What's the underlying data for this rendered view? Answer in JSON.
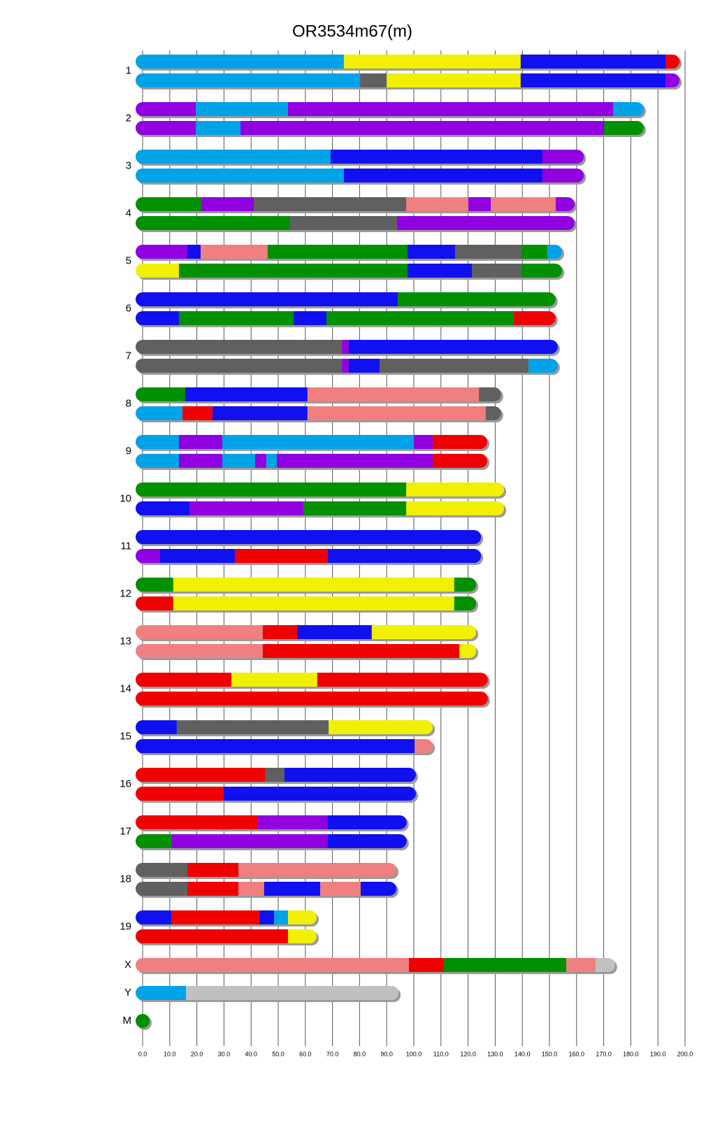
{
  "chart_data": {
    "type": "chromosome-painting",
    "title": "OR3534m67(m)",
    "xlim": [
      0,
      200
    ],
    "xticks": [
      {
        "value": 0,
        "label": "0.0"
      },
      {
        "value": 10,
        "label": "10.0"
      },
      {
        "value": 20,
        "label": "20.0"
      },
      {
        "value": 30,
        "label": "30.0"
      },
      {
        "value": 40,
        "label": "40.0"
      },
      {
        "value": 50,
        "label": "50.0"
      },
      {
        "value": 60,
        "label": "60.0"
      },
      {
        "value": 70,
        "label": "70.0"
      },
      {
        "value": 80,
        "label": "80.0"
      },
      {
        "value": 90,
        "label": "90.0"
      },
      {
        "value": 100,
        "label": "100.0"
      },
      {
        "value": 110,
        "label": "110.0"
      },
      {
        "value": 120,
        "label": "120.0"
      },
      {
        "value": 130,
        "label": "130.0"
      },
      {
        "value": 140,
        "label": "140.0"
      },
      {
        "value": 150,
        "label": "150.0"
      },
      {
        "value": 160,
        "label": "160.0"
      },
      {
        "value": 170,
        "label": "170.0"
      },
      {
        "value": 180,
        "label": "180.0"
      },
      {
        "value": 190,
        "label": "190.0"
      },
      {
        "value": 200,
        "label": "200.0"
      }
    ],
    "grid": true,
    "chromosomes": [
      {
        "name": "1",
        "haplotypes": [
          [
            [
              74.2,
              "#00a2e8"
            ],
            [
              65.2,
              "#f0f000"
            ],
            [
              53.4,
              "#1010f0"
            ],
            [
              2.6,
              "#f00000"
            ]
          ],
          [
            [
              80.2,
              "#00a2e8"
            ],
            [
              9.8,
              "#606060"
            ],
            [
              49.4,
              "#f0f000"
            ],
            [
              53.4,
              "#1010f0"
            ],
            [
              2.6,
              "#9000e0"
            ]
          ]
        ]
      },
      {
        "name": "2",
        "haplotypes": [
          [
            [
              19.6,
              "#9000e0"
            ],
            [
              34,
              "#00a2e8"
            ],
            [
              119.9,
              "#9000e0"
            ],
            [
              8.7,
              "#00a2e8"
            ]
          ],
          [
            [
              19.6,
              "#9000e0"
            ],
            [
              16.5,
              "#00a2e8"
            ],
            [
              134,
              "#9000e0"
            ],
            [
              12.1,
              "#009000"
            ]
          ]
        ]
      },
      {
        "name": "3",
        "haplotypes": [
          [
            [
              69.3,
              "#00a2e8"
            ],
            [
              78.1,
              "#1010f0"
            ],
            [
              12.7,
              "#9000e0"
            ]
          ],
          [
            [
              74.2,
              "#00a2e8"
            ],
            [
              73.2,
              "#1010f0"
            ],
            [
              12.7,
              "#9000e0"
            ]
          ]
        ]
      },
      {
        "name": "4",
        "haplotypes": [
          [
            [
              21.6,
              "#009000"
            ],
            [
              19.4,
              "#9000e0"
            ],
            [
              56.2,
              "#606060"
            ],
            [
              22.9,
              "#f08080"
            ],
            [
              8.3,
              "#9000e0"
            ],
            [
              23.9,
              "#f08080"
            ],
            [
              4.4,
              "#9000e0"
            ]
          ],
          [
            [
              54.4,
              "#009000"
            ],
            [
              39.4,
              "#606060"
            ],
            [
              62.9,
              "#9000e0"
            ]
          ]
        ]
      },
      {
        "name": "5",
        "haplotypes": [
          [
            [
              16.5,
              "#9000e0"
            ],
            [
              4.9,
              "#1010f0"
            ],
            [
              24.7,
              "#f08080"
            ],
            [
              51.6,
              "#009000"
            ],
            [
              17.5,
              "#1010f0"
            ],
            [
              24.5,
              "#606060"
            ],
            [
              9.5,
              "#009000"
            ],
            [
              2.9,
              "#00a2e8"
            ]
          ],
          [
            [
              13.4,
              "#f0f000"
            ],
            [
              84.3,
              "#009000"
            ],
            [
              23.7,
              "#1010f0"
            ],
            [
              18.3,
              "#606060"
            ],
            [
              12.4,
              "#009000"
            ]
          ]
        ]
      },
      {
        "name": "6",
        "haplotypes": [
          [
            [
              94.1,
              "#1010f0"
            ],
            [
              55.6,
              "#009000"
            ]
          ],
          [
            [
              13.4,
              "#1010f0"
            ],
            [
              42.3,
              "#009000"
            ],
            [
              12.1,
              "#1010f0"
            ],
            [
              69.1,
              "#009000"
            ],
            [
              12.8,
              "#f00000"
            ]
          ]
        ]
      },
      {
        "name": "7",
        "haplotypes": [
          [
            [
              73.5,
              "#606060"
            ],
            [
              2.5,
              "#9000e0"
            ],
            [
              74.5,
              "#1010f0"
            ]
          ],
          [
            [
              73.5,
              "#606060"
            ],
            [
              2.5,
              "#9000e0"
            ],
            [
              11.4,
              "#1010f0"
            ],
            [
              54.9,
              "#606060"
            ],
            [
              8.2,
              "#00a2e8"
            ]
          ]
        ]
      },
      {
        "name": "8",
        "haplotypes": [
          [
            [
              15.7,
              "#009000"
            ],
            [
              45.1,
              "#1010f0"
            ],
            [
              63.2,
              "#f08080"
            ],
            [
              5.6,
              "#606060"
            ]
          ],
          [
            [
              14.7,
              "#00a2e8"
            ],
            [
              11.1,
              "#f00000"
            ],
            [
              35,
              "#1010f0"
            ],
            [
              65.7,
              "#f08080"
            ],
            [
              3.1,
              "#606060"
            ]
          ]
        ]
      },
      {
        "name": "9",
        "haplotypes": [
          [
            [
              13.4,
              "#00a2e8"
            ],
            [
              16,
              "#9000e0"
            ],
            [
              70.6,
              "#00a2e8"
            ],
            [
              7,
              "#9000e0"
            ],
            [
              17.5,
              "#f00000"
            ]
          ],
          [
            [
              13.4,
              "#00a2e8"
            ],
            [
              16,
              "#9000e0"
            ],
            [
              12.1,
              "#00a2e8"
            ],
            [
              4.1,
              "#9000e0"
            ],
            [
              3.9,
              "#00a2e8"
            ],
            [
              57.5,
              "#9000e0"
            ],
            [
              17.5,
              "#f00000"
            ]
          ]
        ]
      },
      {
        "name": "10",
        "haplotypes": [
          [
            [
              97.2,
              "#009000"
            ],
            [
              33.5,
              "#f0f000"
            ]
          ],
          [
            [
              17.3,
              "#1010f0"
            ],
            [
              42,
              "#9000e0"
            ],
            [
              37.9,
              "#009000"
            ],
            [
              33.5,
              "#f0f000"
            ]
          ]
        ]
      },
      {
        "name": "11",
        "haplotypes": [
          [
            [
              122.2,
              "#1010f0"
            ]
          ],
          [
            [
              6.4,
              "#9000e0"
            ],
            [
              27.6,
              "#1010f0"
            ],
            [
              34.3,
              "#f00000"
            ],
            [
              53.9,
              "#1010f0"
            ]
          ]
        ]
      },
      {
        "name": "12",
        "haplotypes": [
          [
            [
              11.3,
              "#009000"
            ],
            [
              103.6,
              "#f0f000"
            ],
            [
              5.5,
              "#009000"
            ]
          ],
          [
            [
              11.3,
              "#f00000"
            ],
            [
              103.6,
              "#f0f000"
            ],
            [
              5.5,
              "#009000"
            ]
          ]
        ]
      },
      {
        "name": "13",
        "haplotypes": [
          [
            [
              44.3,
              "#f08080"
            ],
            [
              12.7,
              "#f00000"
            ],
            [
              27.5,
              "#1010f0"
            ],
            [
              35.9,
              "#f0f000"
            ]
          ],
          [
            [
              44.3,
              "#f08080"
            ],
            [
              72.5,
              "#f00000"
            ],
            [
              3.6,
              "#f0f000"
            ]
          ]
        ]
      },
      {
        "name": "14",
        "haplotypes": [
          [
            [
              32.7,
              "#f00000"
            ],
            [
              31.7,
              "#f0f000"
            ],
            [
              60.3,
              "#f00000"
            ]
          ],
          [
            [
              124.7,
              "#f00000"
            ]
          ]
        ]
      },
      {
        "name": "15",
        "haplotypes": [
          [
            [
              12.6,
              "#1010f0"
            ],
            [
              56,
              "#606060"
            ],
            [
              35.8,
              "#f0f000"
            ]
          ],
          [
            [
              100.3,
              "#1010f0"
            ],
            [
              4.1,
              "#f08080"
            ]
          ]
        ]
      },
      {
        "name": "16",
        "haplotypes": [
          [
            [
              45.1,
              "#f00000"
            ],
            [
              7.2,
              "#606060"
            ],
            [
              45.9,
              "#1010f0"
            ]
          ],
          [
            [
              29.9,
              "#f00000"
            ],
            [
              68.3,
              "#1010f0"
            ]
          ]
        ]
      },
      {
        "name": "17",
        "haplotypes": [
          [
            [
              42.5,
              "#f00000"
            ],
            [
              25.8,
              "#9000e0"
            ],
            [
              26.5,
              "#1010f0"
            ]
          ],
          [
            [
              10.8,
              "#009000"
            ],
            [
              57.5,
              "#9000e0"
            ],
            [
              26.5,
              "#1010f0"
            ]
          ]
        ]
      },
      {
        "name": "18",
        "haplotypes": [
          [
            [
              16.5,
              "#606060"
            ],
            [
              18.8,
              "#f00000"
            ],
            [
              55.7,
              "#f08080"
            ]
          ],
          [
            [
              16.5,
              "#606060"
            ],
            [
              18.8,
              "#f00000"
            ],
            [
              9.5,
              "#f08080"
            ],
            [
              20.7,
              "#1010f0"
            ],
            [
              14.9,
              "#f08080"
            ],
            [
              10.6,
              "#1010f0"
            ]
          ]
        ]
      },
      {
        "name": "19",
        "haplotypes": [
          [
            [
              10.6,
              "#1010f0"
            ],
            [
              32.4,
              "#f00000"
            ],
            [
              5.5,
              "#1010f0"
            ],
            [
              5.1,
              "#00a2e8"
            ],
            [
              8,
              "#f0f000"
            ]
          ],
          [
            [
              53.6,
              "#f00000"
            ],
            [
              8,
              "#f0f000"
            ]
          ]
        ]
      },
      {
        "name": "X",
        "haplotypes": [
          [
            [
              98.2,
              "#f08080"
            ],
            [
              12.9,
              "#f00000"
            ],
            [
              45.1,
              "#009000"
            ],
            [
              10.8,
              "#f08080"
            ],
            [
              4.6,
              "#c0c0c0"
            ]
          ]
        ]
      },
      {
        "name": "Y",
        "haplotypes": [
          [
            [
              16,
              "#00a2e8"
            ],
            [
              75.8,
              "#c0c0c0"
            ]
          ]
        ]
      },
      {
        "name": "M",
        "haplotypes": [
          [
            [
              0,
              "#009000"
            ]
          ]
        ]
      }
    ]
  }
}
